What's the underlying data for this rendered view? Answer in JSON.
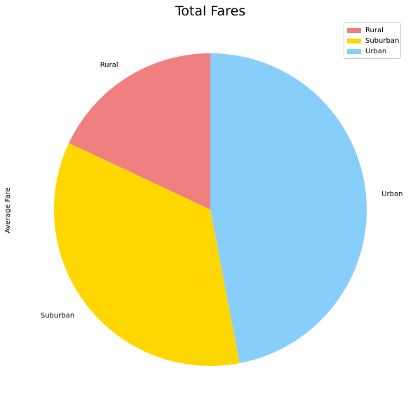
{
  "chart_data": {
    "type": "pie",
    "title": "Total Fares",
    "ylabel": "Average Fare",
    "categories": [
      "Rural",
      "Suburban",
      "Urban"
    ],
    "values": [
      18,
      35,
      47
    ],
    "colors": [
      "#f08080",
      "#ffd700",
      "#87cefa"
    ],
    "start_angle_deg": 90,
    "direction": "counterclockwise",
    "legend": {
      "position": "top-right",
      "items": [
        {
          "label": "Rural",
          "color": "#f08080"
        },
        {
          "label": "Suburban",
          "color": "#ffd700"
        },
        {
          "label": "Urban",
          "color": "#87cefa"
        }
      ]
    }
  }
}
